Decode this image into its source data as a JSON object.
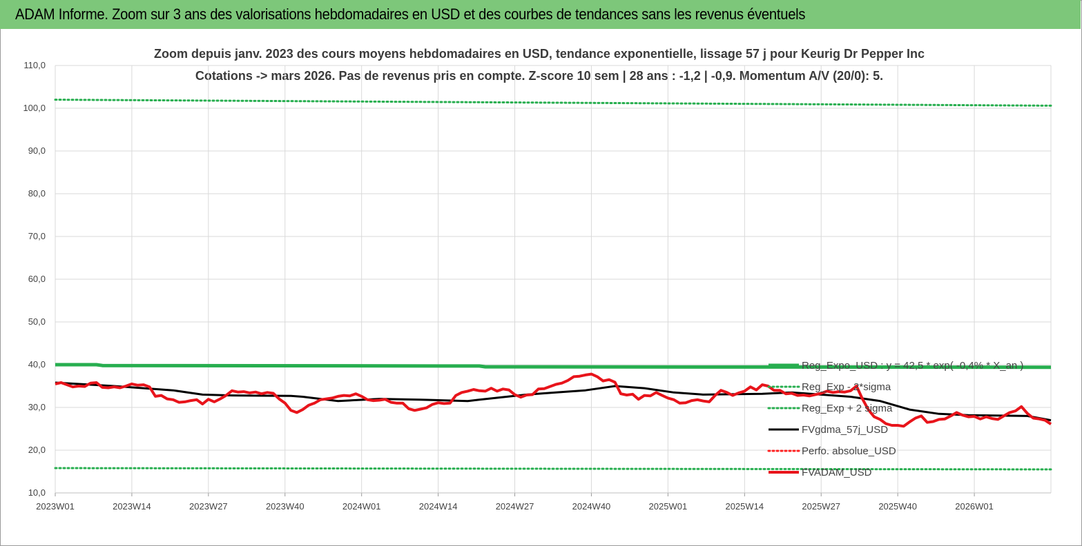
{
  "banner": {
    "title": "ADAM Informe. Zoom sur 3 ans des valorisations hebdomadaires en USD et des courbes de tendances sans les revenus éventuels"
  },
  "chart_data": {
    "type": "line",
    "title_line1": "Zoom depuis janv. 2023 des cours moyens hebdomadaires en USD, tendance exponentielle, lissage 57 j pour Keurig Dr Pepper Inc",
    "title_line2": "Cotations -> mars 2026. Pas de revenus pris en compte. Z-score 10 sem  | 28 ans : -1,2 | -0,9. Momentum A/V (20/0): 5.",
    "ylim": [
      10,
      110
    ],
    "y_ticks": [
      "10,0",
      "20,0",
      "30,0",
      "40,0",
      "50,0",
      "60,0",
      "70,0",
      "80,0",
      "90,0",
      "100,0",
      "110,0"
    ],
    "x_tick_labels": [
      "2023W01",
      "2023W14",
      "2023W27",
      "2023W40",
      "2024W01",
      "2024W14",
      "2024W27",
      "2024W40",
      "2025W01",
      "2025W14",
      "2025W27",
      "2025W40",
      "2026W01"
    ],
    "n_weeks": 170,
    "grid": true,
    "legend_position": "right",
    "series": [
      {
        "name": "Reg_Expo_USD : y = 42,5 * exp( -0,4% * X_an )",
        "color": "#27ae4f",
        "style": "solid-thick",
        "points": [
          [
            0,
            40.0
          ],
          [
            7,
            40.0
          ],
          [
            8,
            39.8
          ],
          [
            72,
            39.7
          ],
          [
            73,
            39.5
          ],
          [
            169,
            39.4
          ]
        ]
      },
      {
        "name": "Reg_Exp - 2*sigma",
        "color": "#27ae4f",
        "style": "dotted",
        "points": [
          [
            0,
            15.8
          ],
          [
            169,
            15.5
          ]
        ]
      },
      {
        "name": "Reg_Exp + 2 sigma",
        "color": "#27ae4f",
        "style": "dotted",
        "points": [
          [
            0,
            102.0
          ],
          [
            169,
            100.6
          ]
        ]
      },
      {
        "name": "FVgdma_57j_USD",
        "color": "#000000",
        "style": "solid",
        "points": [
          [
            0,
            35.8
          ],
          [
            10,
            35.0
          ],
          [
            20,
            34.0
          ],
          [
            25,
            33.0
          ],
          [
            30,
            32.8
          ],
          [
            40,
            32.7
          ],
          [
            45,
            32.0
          ],
          [
            42,
            32.5
          ],
          [
            48,
            31.5
          ],
          [
            55,
            32.0
          ],
          [
            62,
            31.8
          ],
          [
            70,
            31.5
          ],
          [
            72,
            31.8
          ],
          [
            80,
            33.0
          ],
          [
            85,
            33.5
          ],
          [
            90,
            34.0
          ],
          [
            95,
            35.0
          ],
          [
            100,
            34.5
          ],
          [
            105,
            33.5
          ],
          [
            110,
            33.0
          ],
          [
            120,
            33.2
          ],
          [
            125,
            33.5
          ],
          [
            130,
            33.0
          ],
          [
            135,
            32.5
          ],
          [
            140,
            31.5
          ],
          [
            145,
            29.5
          ],
          [
            150,
            28.5
          ],
          [
            155,
            28.2
          ],
          [
            165,
            28.0
          ],
          [
            169,
            27.0
          ]
        ]
      },
      {
        "name": "Perfo. absolue_USD",
        "color": "#ff2020",
        "style": "dotted",
        "points": []
      },
      {
        "name": "FVADAM_USD",
        "color": "#e8141b",
        "style": "solid-thick",
        "points": [
          [
            0,
            35.5
          ],
          [
            1,
            35.8
          ],
          [
            2,
            35.3
          ],
          [
            3,
            34.8
          ],
          [
            4,
            35.0
          ],
          [
            5,
            34.9
          ],
          [
            6,
            35.7
          ],
          [
            7,
            35.8
          ],
          [
            8,
            34.7
          ],
          [
            9,
            34.6
          ],
          [
            10,
            34.8
          ],
          [
            11,
            34.6
          ],
          [
            12,
            35.0
          ],
          [
            13,
            35.5
          ],
          [
            14,
            35.2
          ],
          [
            15,
            35.3
          ],
          [
            16,
            34.8
          ],
          [
            17,
            32.6
          ],
          [
            18,
            32.8
          ],
          [
            19,
            32.0
          ],
          [
            20,
            31.8
          ],
          [
            21,
            31.2
          ],
          [
            22,
            31.3
          ],
          [
            23,
            31.6
          ],
          [
            24,
            31.8
          ],
          [
            25,
            30.8
          ],
          [
            26,
            31.9
          ],
          [
            27,
            31.3
          ],
          [
            28,
            32.0
          ],
          [
            29,
            32.8
          ],
          [
            30,
            33.9
          ],
          [
            31,
            33.6
          ],
          [
            32,
            33.7
          ],
          [
            33,
            33.4
          ],
          [
            34,
            33.6
          ],
          [
            35,
            33.2
          ],
          [
            36,
            33.5
          ],
          [
            37,
            33.3
          ],
          [
            38,
            32.0
          ],
          [
            39,
            31.0
          ],
          [
            40,
            29.3
          ],
          [
            41,
            28.8
          ],
          [
            42,
            29.5
          ],
          [
            43,
            30.5
          ],
          [
            44,
            31.0
          ],
          [
            45,
            31.8
          ],
          [
            46,
            32.0
          ],
          [
            47,
            32.2
          ],
          [
            48,
            32.6
          ],
          [
            49,
            32.8
          ],
          [
            50,
            32.7
          ],
          [
            51,
            33.2
          ],
          [
            52,
            32.6
          ],
          [
            53,
            31.8
          ],
          [
            54,
            31.6
          ],
          [
            55,
            31.7
          ],
          [
            56,
            31.9
          ],
          [
            57,
            31.2
          ],
          [
            58,
            31.0
          ],
          [
            59,
            31.0
          ],
          [
            60,
            29.7
          ],
          [
            61,
            29.3
          ],
          [
            62,
            29.6
          ],
          [
            63,
            29.9
          ],
          [
            64,
            30.7
          ],
          [
            65,
            31.1
          ],
          [
            66,
            30.9
          ],
          [
            67,
            31.0
          ],
          [
            68,
            32.8
          ],
          [
            69,
            33.5
          ],
          [
            70,
            33.8
          ],
          [
            71,
            34.2
          ],
          [
            72,
            33.9
          ],
          [
            73,
            33.8
          ],
          [
            74,
            34.5
          ],
          [
            75,
            33.8
          ],
          [
            76,
            34.3
          ],
          [
            77,
            34.1
          ],
          [
            78,
            33.0
          ],
          [
            79,
            32.4
          ],
          [
            80,
            32.9
          ],
          [
            81,
            33.0
          ],
          [
            82,
            34.3
          ],
          [
            83,
            34.4
          ],
          [
            84,
            34.9
          ],
          [
            85,
            35.4
          ],
          [
            86,
            35.7
          ],
          [
            87,
            36.3
          ],
          [
            88,
            37.2
          ],
          [
            89,
            37.3
          ],
          [
            90,
            37.6
          ],
          [
            91,
            37.8
          ],
          [
            92,
            37.2
          ],
          [
            93,
            36.2
          ],
          [
            94,
            36.5
          ],
          [
            95,
            35.9
          ],
          [
            96,
            33.2
          ],
          [
            97,
            32.9
          ],
          [
            98,
            33.1
          ],
          [
            99,
            31.9
          ],
          [
            100,
            32.8
          ],
          [
            101,
            32.7
          ],
          [
            102,
            33.5
          ],
          [
            103,
            32.8
          ],
          [
            104,
            32.2
          ],
          [
            105,
            31.8
          ],
          [
            106,
            31.0
          ],
          [
            107,
            31.1
          ],
          [
            108,
            31.6
          ],
          [
            109,
            31.8
          ],
          [
            110,
            31.5
          ],
          [
            111,
            31.3
          ],
          [
            112,
            32.8
          ],
          [
            113,
            34.0
          ],
          [
            114,
            33.5
          ],
          [
            115,
            32.8
          ],
          [
            116,
            33.4
          ],
          [
            117,
            33.8
          ],
          [
            118,
            34.8
          ],
          [
            119,
            34.1
          ],
          [
            120,
            35.3
          ],
          [
            121,
            35.0
          ],
          [
            122,
            34.0
          ],
          [
            123,
            34.0
          ],
          [
            124,
            33.2
          ],
          [
            125,
            33.3
          ],
          [
            126,
            32.8
          ],
          [
            127,
            32.9
          ],
          [
            128,
            32.7
          ],
          [
            129,
            33.0
          ],
          [
            130,
            33.3
          ],
          [
            131,
            33.8
          ],
          [
            132,
            33.5
          ],
          [
            133,
            33.7
          ],
          [
            134,
            33.6
          ],
          [
            135,
            33.9
          ],
          [
            136,
            35.0
          ],
          [
            137,
            32.0
          ],
          [
            138,
            29.5
          ],
          [
            139,
            27.8
          ],
          [
            140,
            27.2
          ],
          [
            141,
            26.2
          ],
          [
            142,
            25.8
          ],
          [
            143,
            25.8
          ],
          [
            144,
            25.6
          ],
          [
            145,
            26.6
          ],
          [
            146,
            27.5
          ],
          [
            147,
            28.0
          ],
          [
            148,
            26.5
          ],
          [
            149,
            26.7
          ],
          [
            150,
            27.2
          ],
          [
            151,
            27.3
          ],
          [
            152,
            28.0
          ],
          [
            153,
            28.8
          ],
          [
            154,
            28.2
          ],
          [
            155,
            27.8
          ],
          [
            156,
            27.9
          ],
          [
            157,
            27.3
          ],
          [
            158,
            27.8
          ],
          [
            159,
            27.4
          ],
          [
            160,
            27.2
          ],
          [
            161,
            28.0
          ],
          [
            162,
            28.8
          ],
          [
            163,
            29.2
          ],
          [
            164,
            30.2
          ],
          [
            165,
            28.6
          ],
          [
            166,
            27.5
          ],
          [
            167,
            27.3
          ],
          [
            168,
            27.0
          ],
          [
            169,
            26.1
          ]
        ]
      }
    ]
  }
}
